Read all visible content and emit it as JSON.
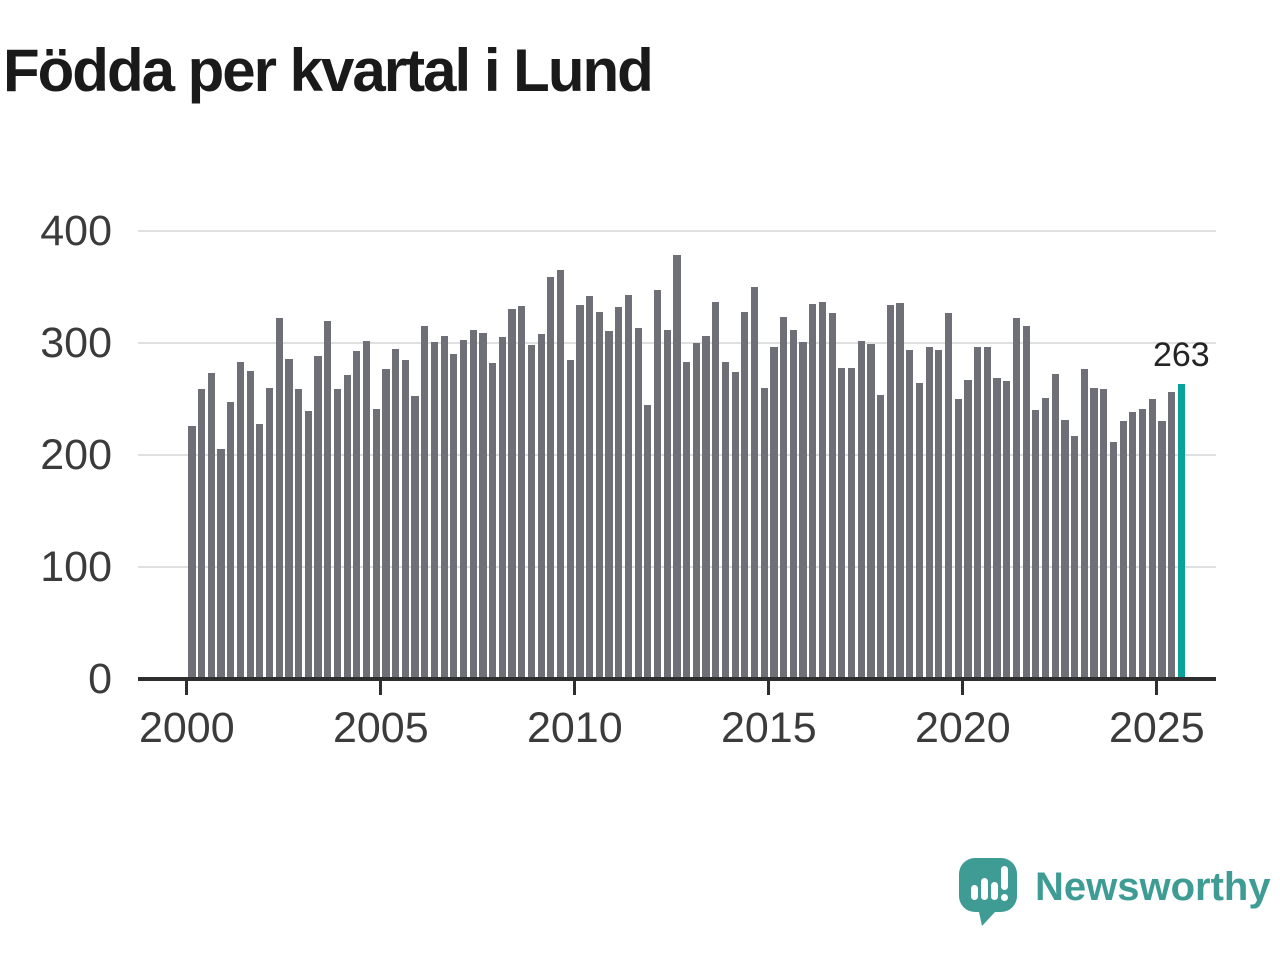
{
  "header": {
    "title": "Födda per kvartal i Lund"
  },
  "logo": {
    "text": "Newsworthy",
    "icon": "newsworthy-speech-bubble-chart-icon"
  },
  "colors": {
    "bar": "#6f6f78",
    "highlight": "#0aa39c",
    "grid": "#e0e0e0",
    "axis": "#2e2e2e",
    "tick_text": "#3b3b3b",
    "title_text": "#1a1a1a",
    "logo_teal": "#3e9c95"
  },
  "chart_data": {
    "type": "bar",
    "title": "Födda per kvartal i Lund",
    "xlabel": "",
    "ylabel": "",
    "frequency": "quarterly",
    "x_range": [
      "2000 Q1",
      "2025 Q3"
    ],
    "ylim": [
      0,
      400
    ],
    "y_ticks": [
      0,
      100,
      200,
      300,
      400
    ],
    "x_tick_labels": [
      "2000",
      "2005",
      "2010",
      "2015",
      "2020",
      "2025"
    ],
    "grid": "horizontal",
    "legend": "none",
    "highlight": {
      "index": 102,
      "category": "2025 Q3",
      "value": 263,
      "value_label": "263"
    },
    "categories": [
      "2000 Q1",
      "2000 Q2",
      "2000 Q3",
      "2000 Q4",
      "2001 Q1",
      "2001 Q2",
      "2001 Q3",
      "2001 Q4",
      "2002 Q1",
      "2002 Q2",
      "2002 Q3",
      "2002 Q4",
      "2003 Q1",
      "2003 Q2",
      "2003 Q3",
      "2003 Q4",
      "2004 Q1",
      "2004 Q2",
      "2004 Q3",
      "2004 Q4",
      "2005 Q1",
      "2005 Q2",
      "2005 Q3",
      "2005 Q4",
      "2006 Q1",
      "2006 Q2",
      "2006 Q3",
      "2006 Q4",
      "2007 Q1",
      "2007 Q2",
      "2007 Q3",
      "2007 Q4",
      "2008 Q1",
      "2008 Q2",
      "2008 Q3",
      "2008 Q4",
      "2009 Q1",
      "2009 Q2",
      "2009 Q3",
      "2009 Q4",
      "2010 Q1",
      "2010 Q2",
      "2010 Q3",
      "2010 Q4",
      "2011 Q1",
      "2011 Q2",
      "2011 Q3",
      "2011 Q4",
      "2012 Q1",
      "2012 Q2",
      "2012 Q3",
      "2012 Q4",
      "2013 Q1",
      "2013 Q2",
      "2013 Q3",
      "2013 Q4",
      "2014 Q1",
      "2014 Q2",
      "2014 Q3",
      "2014 Q4",
      "2015 Q1",
      "2015 Q2",
      "2015 Q3",
      "2015 Q4",
      "2016 Q1",
      "2016 Q2",
      "2016 Q3",
      "2016 Q4",
      "2017 Q1",
      "2017 Q2",
      "2017 Q3",
      "2017 Q4",
      "2018 Q1",
      "2018 Q2",
      "2018 Q3",
      "2018 Q4",
      "2019 Q1",
      "2019 Q2",
      "2019 Q3",
      "2019 Q4",
      "2020 Q1",
      "2020 Q2",
      "2020 Q3",
      "2020 Q4",
      "2021 Q1",
      "2021 Q2",
      "2021 Q3",
      "2021 Q4",
      "2022 Q1",
      "2022 Q2",
      "2022 Q3",
      "2022 Q4",
      "2023 Q1",
      "2023 Q2",
      "2023 Q3",
      "2023 Q4",
      "2024 Q1",
      "2024 Q2",
      "2024 Q3",
      "2024 Q4",
      "2025 Q1",
      "2025 Q2",
      "2025 Q3"
    ],
    "values": [
      226,
      259,
      273,
      205,
      247,
      283,
      275,
      228,
      260,
      322,
      286,
      259,
      239,
      288,
      320,
      259,
      271,
      293,
      302,
      241,
      277,
      295,
      285,
      253,
      315,
      301,
      306,
      290,
      303,
      312,
      309,
      282,
      305,
      330,
      333,
      298,
      308,
      359,
      365,
      285,
      334,
      342,
      328,
      311,
      332,
      343,
      313,
      245,
      347,
      312,
      379,
      283,
      300,
      306,
      337,
      283,
      274,
      328,
      350,
      260,
      296,
      323,
      312,
      301,
      335,
      337,
      327,
      278,
      278,
      302,
      299,
      254,
      334,
      336,
      294,
      264,
      296,
      294,
      327,
      250,
      267,
      296,
      296,
      269,
      266,
      322,
      315,
      240,
      251,
      272,
      231,
      217,
      277,
      260,
      259,
      212,
      230,
      238,
      241,
      250,
      230,
      256,
      263
    ]
  }
}
